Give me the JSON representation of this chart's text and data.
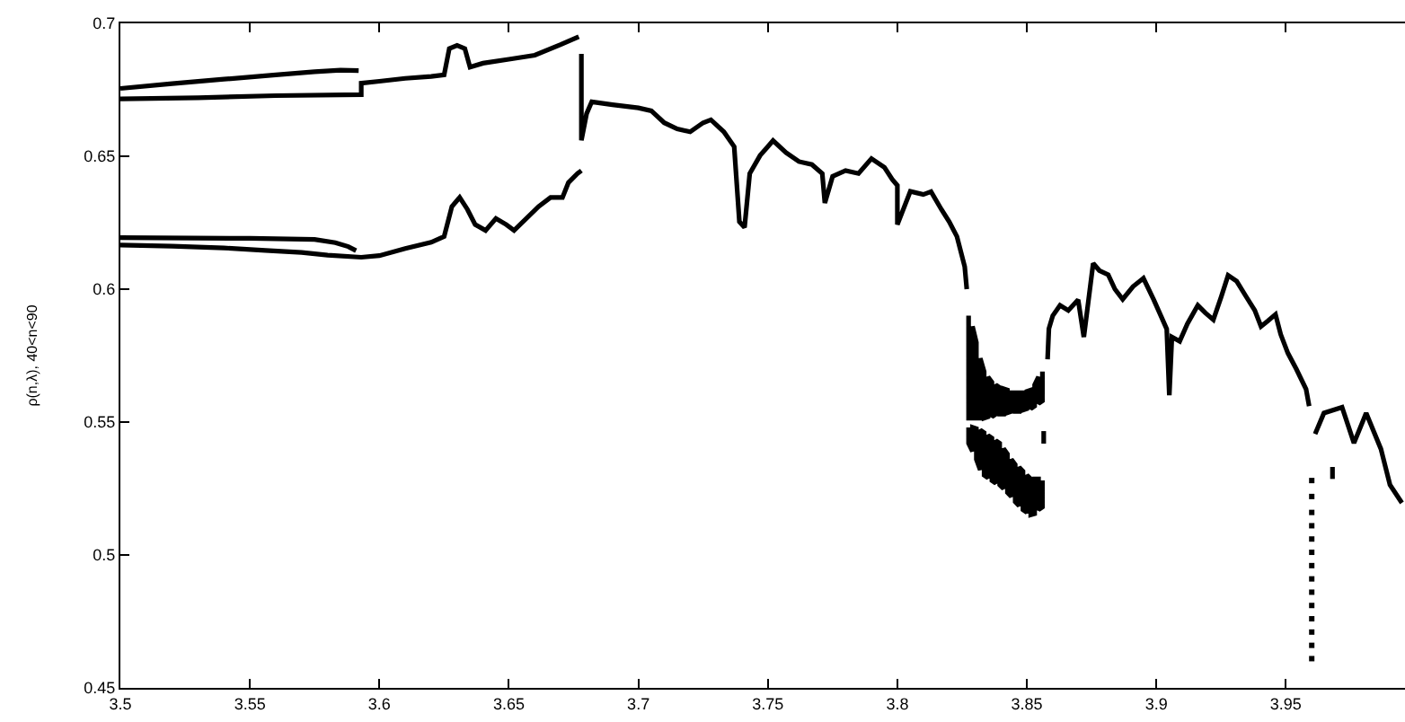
{
  "chart_data": {
    "type": "line",
    "ylabel": "ρ(n,λ), 40<n<90",
    "xlim": [
      3.5,
      3.996
    ],
    "xticks": [
      3.5,
      3.55,
      3.6,
      3.65,
      3.7,
      3.75,
      3.8,
      3.85,
      3.9,
      3.95
    ],
    "ylim": [
      0.45,
      0.7
    ],
    "yticks": [
      0.45,
      0.5,
      0.55,
      0.6,
      0.65,
      0.7
    ],
    "grid": false,
    "series": [
      {
        "color": "#000000",
        "x": [
          3.5,
          3.52,
          3.54,
          3.56,
          3.575,
          3.585,
          3.592
        ],
        "values": [
          0.6755,
          0.6773,
          0.679,
          0.6806,
          0.6818,
          0.6824,
          0.6822
        ]
      },
      {
        "color": "#000000",
        "x": [
          3.5,
          3.53,
          3.56,
          3.593,
          3.593,
          3.6,
          3.61,
          3.62,
          3.625,
          3.627,
          3.63,
          3.633,
          3.635,
          3.64,
          3.65,
          3.66,
          3.67,
          3.677
        ],
        "values": [
          0.6716,
          0.672,
          0.6728,
          0.6732,
          0.6775,
          0.6782,
          0.6793,
          0.68,
          0.6806,
          0.6905,
          0.6917,
          0.6905,
          0.6835,
          0.685,
          0.6865,
          0.688,
          0.692,
          0.695
        ]
      },
      {
        "color": "#000000",
        "x": [
          3.5,
          3.55,
          3.575,
          3.583,
          3.588,
          3.591
        ],
        "values": [
          0.6194,
          0.6191,
          0.6187,
          0.6175,
          0.616,
          0.6145
        ]
      },
      {
        "color": "#000000",
        "x": [
          3.5,
          3.52,
          3.54,
          3.556,
          3.57,
          3.58,
          3.593,
          3.6,
          3.61,
          3.62,
          3.625,
          3.628,
          3.631,
          3.634,
          3.637,
          3.641,
          3.645,
          3.649,
          3.652,
          3.6615,
          3.6661,
          3.6707,
          3.673,
          3.6765,
          3.678
        ],
        "values": [
          0.6166,
          0.6162,
          0.6155,
          0.6146,
          0.6138,
          0.6128,
          0.612,
          0.6126,
          0.6153,
          0.6176,
          0.6198,
          0.6311,
          0.6345,
          0.63,
          0.6243,
          0.6221,
          0.6266,
          0.6243,
          0.6221,
          0.6311,
          0.6345,
          0.6345,
          0.6401,
          0.6435,
          0.6446
        ]
      },
      {
        "color": "#000000",
        "x": [
          3.678,
          3.678,
          3.68,
          3.682,
          3.69,
          3.7,
          3.705,
          3.71,
          3.715,
          3.72,
          3.725,
          3.728,
          3.733,
          3.737,
          3.739,
          3.741,
          3.743,
          3.747,
          3.75,
          3.752,
          3.757,
          3.762,
          3.767,
          3.771,
          3.772,
          3.775,
          3.78,
          3.785,
          3.79,
          3.795,
          3.798,
          3.8,
          3.8,
          3.805,
          3.81,
          3.813,
          3.817,
          3.82,
          3.823,
          3.826,
          3.8268
        ],
        "values": [
          0.6885,
          0.656,
          0.666,
          0.6705,
          0.6694,
          0.6682,
          0.6671,
          0.6626,
          0.6603,
          0.6592,
          0.6626,
          0.6637,
          0.6592,
          0.6536,
          0.6254,
          0.6232,
          0.6435,
          0.6503,
          0.6536,
          0.6559,
          0.6514,
          0.648,
          0.6469,
          0.6435,
          0.6324,
          0.6424,
          0.6446,
          0.6435,
          0.6491,
          0.6458,
          0.6413,
          0.639,
          0.6243,
          0.6368,
          0.6356,
          0.6367,
          0.63,
          0.6254,
          0.6198,
          0.6085,
          0.6
        ]
      },
      {
        "color": "#000000",
        "x": [
          3.8275,
          3.8275,
          3.829,
          3.829,
          3.8305,
          3.8305,
          3.832,
          3.832,
          3.8335,
          3.8335,
          3.835,
          3.835,
          3.8365,
          3.8365,
          3.838,
          3.838,
          3.8395,
          3.8395,
          3.841,
          3.841,
          3.8425,
          3.8425,
          3.844,
          3.844,
          3.8455,
          3.8455,
          3.847,
          3.847,
          3.8485,
          3.8485,
          3.85,
          3.85,
          3.8515,
          3.8515,
          3.853,
          3.853,
          3.8545,
          3.8545,
          3.856,
          3.856
        ],
        "values": [
          0.59,
          0.5515,
          0.5515,
          0.586,
          0.58,
          0.5515,
          0.5515,
          0.574,
          0.569,
          0.5515,
          0.552,
          0.567,
          0.565,
          0.552,
          0.553,
          0.564,
          0.563,
          0.553,
          0.553,
          0.5625,
          0.562,
          0.5535,
          0.554,
          0.561,
          0.561,
          0.554,
          0.554,
          0.561,
          0.561,
          0.5545,
          0.555,
          0.5615,
          0.562,
          0.555,
          0.556,
          0.564,
          0.567,
          0.557,
          0.558,
          0.569
        ]
      },
      {
        "color": "#000000",
        "x": [
          3.8275,
          3.8275,
          3.829,
          3.829,
          3.8305,
          3.8305,
          3.832,
          3.832,
          3.8335,
          3.8335,
          3.835,
          3.835,
          3.8365,
          3.8365,
          3.838,
          3.838,
          3.8395,
          3.8395,
          3.841,
          3.841,
          3.8425,
          3.8425,
          3.844,
          3.844,
          3.8455,
          3.8455,
          3.847,
          3.847,
          3.8485,
          3.8485,
          3.85,
          3.85,
          3.8515,
          3.8515,
          3.853,
          3.853,
          3.8545,
          3.8545,
          3.856,
          3.856
        ],
        "values": [
          0.548,
          0.542,
          0.539,
          0.548,
          0.5475,
          0.536,
          0.532,
          0.547,
          0.546,
          0.53,
          0.529,
          0.545,
          0.544,
          0.528,
          0.527,
          0.543,
          0.542,
          0.5264,
          0.525,
          0.54,
          0.538,
          0.5235,
          0.522,
          0.536,
          0.534,
          0.52,
          0.5185,
          0.533,
          0.5315,
          0.517,
          0.516,
          0.53,
          0.5286,
          0.5151,
          0.5155,
          0.5286,
          0.5286,
          0.517,
          0.518,
          0.528
        ]
      },
      {
        "color": "#000000",
        "x": [
          3.858,
          3.8585,
          3.86,
          3.8628,
          3.866,
          3.8698,
          3.872,
          3.8756,
          3.878,
          3.8814,
          3.884,
          3.887,
          3.891,
          3.895,
          3.899,
          3.902,
          3.904,
          3.905,
          3.906,
          3.909,
          3.912,
          3.916,
          3.919,
          3.922,
          3.925,
          3.9277,
          3.931,
          3.9346,
          3.938,
          3.9404,
          3.943,
          3.946,
          3.948,
          3.9508,
          3.954,
          3.9578,
          3.959
        ],
        "values": [
          0.5736,
          0.5851,
          0.59,
          0.5939,
          0.592,
          0.596,
          0.582,
          0.6097,
          0.607,
          0.6054,
          0.6,
          0.5962,
          0.601,
          0.6041,
          0.596,
          0.5894,
          0.585,
          0.5601,
          0.582,
          0.5804,
          0.587,
          0.5939,
          0.591,
          0.5885,
          0.597,
          0.6052,
          0.603,
          0.5973,
          0.592,
          0.586,
          0.588,
          0.5905,
          0.583,
          0.5759,
          0.57,
          0.5624,
          0.556
        ]
      },
      {
        "color": "#000000",
        "x": [
          3.9613,
          3.9647,
          3.9717,
          3.9763,
          3.981,
          3.9867,
          3.9902,
          3.9948
        ],
        "values": [
          0.5455,
          0.5534,
          0.5556,
          0.5421,
          0.5534,
          0.5399,
          0.5264,
          0.5196
        ]
      },
      {
        "color": "#000000",
        "x": [
          3.8565,
          3.8565
        ],
        "values": [
          0.5466,
          0.5419
        ]
      },
      {
        "color": "#000000",
        "x": [
          3.968,
          3.968
        ],
        "values": [
          0.5331,
          0.5286
        ]
      },
      {
        "color": "#000000",
        "type": "scatter",
        "marker": "square",
        "x": [
          3.96,
          3.96,
          3.96,
          3.96,
          3.96,
          3.96,
          3.96,
          3.96,
          3.96,
          3.96,
          3.96,
          3.96,
          3.96,
          3.96
        ],
        "values": [
          0.461,
          0.466,
          0.471,
          0.476,
          0.481,
          0.486,
          0.491,
          0.496,
          0.501,
          0.506,
          0.511,
          0.516,
          0.522,
          0.528
        ]
      }
    ]
  }
}
